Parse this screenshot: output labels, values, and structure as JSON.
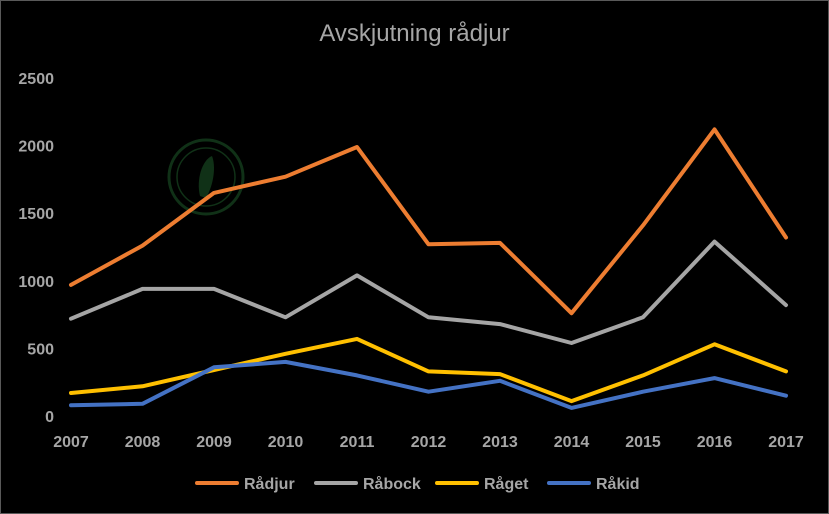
{
  "chart_data": {
    "type": "line",
    "title": "Avskjutning rådjur",
    "xlabel": "",
    "ylabel": "",
    "ylim": [
      0,
      2500
    ],
    "yticks": [
      "0",
      "500",
      "1000",
      "1500",
      "2000",
      "2500"
    ],
    "categories": [
      "2007",
      "2008",
      "2009",
      "2010",
      "2011",
      "2012",
      "2013",
      "2014",
      "2015",
      "2016",
      "2017"
    ],
    "grid": false,
    "legend": "bottom",
    "series": [
      {
        "name": "Rådjur",
        "color": "#ed7d31",
        "values": [
          970,
          1260,
          1650,
          1770,
          1990,
          1270,
          1280,
          760,
          1410,
          2120,
          1320
        ]
      },
      {
        "name": "Råbock",
        "color": "#a5a5a5",
        "values": [
          720,
          940,
          940,
          730,
          1040,
          730,
          680,
          540,
          730,
          1290,
          820
        ]
      },
      {
        "name": "Råget",
        "color": "#ffc000",
        "values": [
          170,
          220,
          340,
          460,
          570,
          330,
          310,
          110,
          300,
          530,
          330
        ]
      },
      {
        "name": "Råkid",
        "color": "#4472c4",
        "values": [
          80,
          90,
          360,
          400,
          300,
          180,
          260,
          60,
          180,
          280,
          150
        ]
      }
    ]
  }
}
